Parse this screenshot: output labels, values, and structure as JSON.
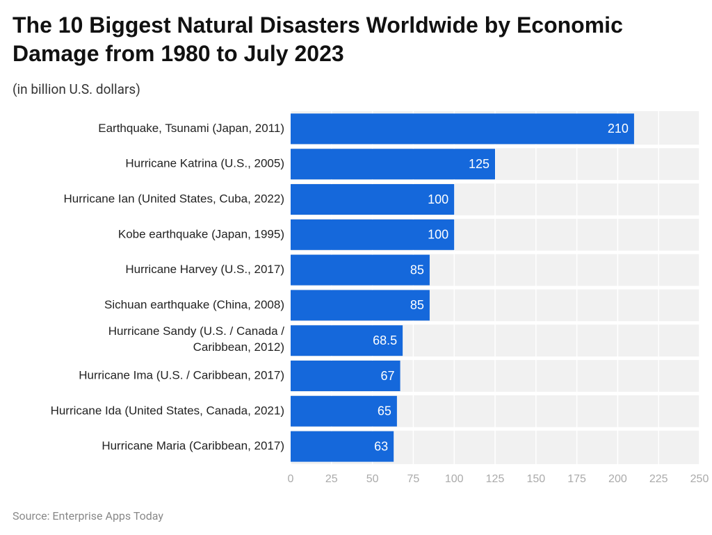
{
  "chart_data": {
    "type": "bar",
    "orientation": "horizontal",
    "title": "The 10 Biggest Natural Disasters Worldwide by Economic Damage from 1980 to July 2023",
    "subtitle": "(in billion U.S. dollars)",
    "source": "Source: Enterprise Apps Today",
    "categories": [
      "Earthquake, Tsunami (Japan, 2011)",
      "Hurricane Katrina (U.S., 2005)",
      "Hurricane Ian (United States, Cuba, 2022)",
      "Kobe earthquake (Japan, 1995)",
      "Hurricane Harvey (U.S., 2017)",
      "Sichuan earthquake (China, 2008)",
      "Hurricane Sandy (U.S. / Canada / Caribbean, 2012)",
      "Hurricane Ima (U.S. / Caribbean, 2017)",
      "Hurricane Ida (United States, Canada, 2021)",
      "Hurricane Maria (Caribbean, 2017)"
    ],
    "values": [
      210,
      125,
      100,
      100,
      85,
      85,
      68.5,
      67,
      65,
      63
    ],
    "color": "#1568db",
    "xlim": [
      0,
      250
    ],
    "xticks": [
      0,
      25,
      50,
      75,
      100,
      125,
      150,
      175,
      200,
      225,
      250
    ],
    "grid": true
  }
}
